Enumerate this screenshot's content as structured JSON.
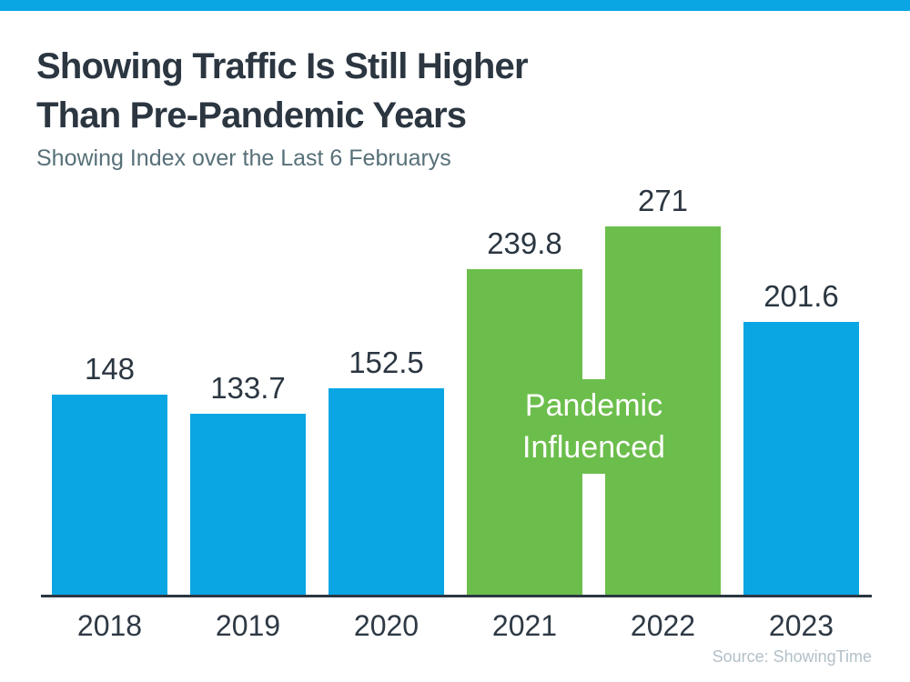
{
  "accent": {
    "top_bar_color": "#0aa6e4"
  },
  "header": {
    "title_line1": "Showing Traffic Is Still Higher",
    "title_line2": "Than Pre-Pandemic Years",
    "subtitle": "Showing Index over the Last 6 Februarys"
  },
  "chart_data": {
    "type": "bar",
    "title": "Showing Traffic Is Still Higher Than Pre-Pandemic Years",
    "subtitle": "Showing Index over the Last 6 Februarys",
    "categories": [
      "2018",
      "2019",
      "2020",
      "2021",
      "2022",
      "2023"
    ],
    "values": [
      148,
      133.7,
      152.5,
      239.8,
      271,
      201.6
    ],
    "value_labels": [
      "148",
      "133.7",
      "152.5",
      "239.8",
      "271",
      "201.6"
    ],
    "bar_colors": [
      "#0aa6e4",
      "#0aa6e4",
      "#0aa6e4",
      "#6cbe4c",
      "#6cbe4c",
      "#0aa6e4"
    ],
    "xlabel": "",
    "ylabel": "",
    "ylim": [
      0,
      290
    ],
    "grid": false,
    "legend": "none",
    "annotation": {
      "line1": "Pandemic",
      "line2": "Influenced",
      "applies_to": [
        "2021",
        "2022"
      ],
      "bg_color": "#6cbe4c",
      "text_color": "#ffffff"
    },
    "colors": {
      "blue": "#0aa6e4",
      "green": "#6cbe4c",
      "axis": "#2b3742",
      "label_text": "#2b3641"
    }
  },
  "footer": {
    "source": "Source: ShowingTime"
  }
}
